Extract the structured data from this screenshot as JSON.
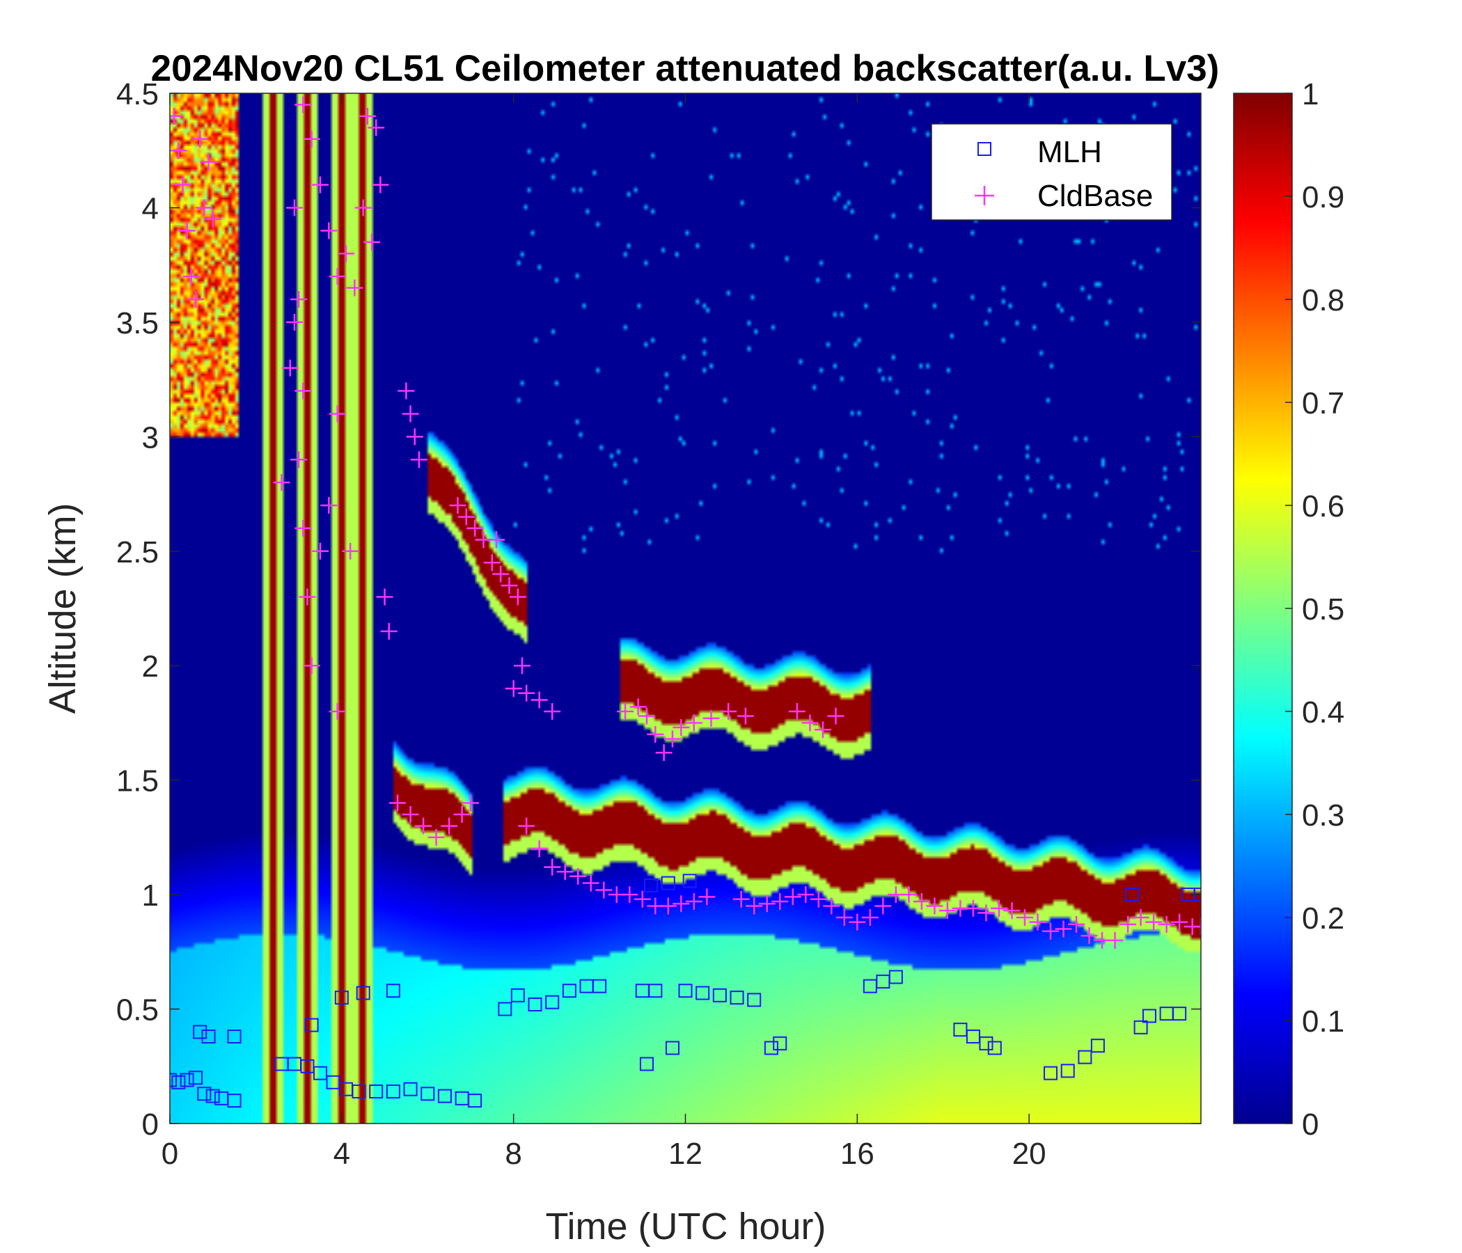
{
  "chart_data": {
    "type": "heatmap",
    "title": "2024Nov20 CL51 Ceilometer attenuated backscatter(a.u. Lv3)",
    "xlabel": "Time (UTC hour)",
    "ylabel": "Altitude (km)",
    "xlim": [
      0,
      24
    ],
    "ylim": [
      0,
      4.5
    ],
    "xticks": [
      0,
      4,
      8,
      12,
      16,
      20
    ],
    "xtick_labels": [
      "0",
      "4",
      "8",
      "12",
      "16",
      "20"
    ],
    "yticks": [
      0,
      0.5,
      1,
      1.5,
      2,
      2.5,
      3,
      3.5,
      4,
      4.5
    ],
    "ytick_labels": [
      "0",
      "0.5",
      "1",
      "1.5",
      "2",
      "2.5",
      "3",
      "3.5",
      "4",
      "4.5"
    ],
    "colorbar": {
      "colormap": "jet",
      "range": [
        0,
        1
      ],
      "ticks": [
        0,
        0.1,
        0.2,
        0.3,
        0.4,
        0.5,
        0.6,
        0.7,
        0.8,
        0.9,
        1
      ],
      "tick_labels": [
        "0",
        "0.1",
        "0.2",
        "0.3",
        "0.4",
        "0.5",
        "0.6",
        "0.7",
        "0.8",
        "0.9",
        "1"
      ]
    },
    "legend": {
      "position": "top-right",
      "entries": [
        {
          "name": "MLH",
          "marker": "square",
          "color": "#1a1aff"
        },
        {
          "name": "CldBase",
          "marker": "plus",
          "color": "#ff33ff"
        }
      ]
    },
    "field_description": {
      "background_level": 0.02,
      "boundary_layer": {
        "top_km": 0.75,
        "level_range": [
          0.25,
          0.6
        ]
      },
      "cloud_layers_km": [
        {
          "x_start": 5.2,
          "x_end": 7.0,
          "y_start": 1.45,
          "y_end": 1.2
        },
        {
          "x_start": 7.8,
          "x_end": 24,
          "y_start": 1.3,
          "y_end": 0.9
        },
        {
          "x_start": 10.5,
          "x_end": 16.3,
          "y_start": 1.85,
          "y_end": 1.75
        },
        {
          "x_start": 6.0,
          "x_end": 8.3,
          "y_start": 2.8,
          "y_end": 2.2
        }
      ],
      "vertical_streaks_hours": [
        2.4,
        3.2,
        4.0,
        4.5
      ]
    },
    "series": [
      {
        "name": "MLH",
        "points": [
          [
            0.0,
            0.19
          ],
          [
            0.2,
            0.18
          ],
          [
            0.4,
            0.19
          ],
          [
            0.6,
            0.2
          ],
          [
            0.8,
            0.13
          ],
          [
            1.0,
            0.12
          ],
          [
            1.2,
            0.11
          ],
          [
            1.5,
            0.1
          ],
          [
            0.7,
            0.4
          ],
          [
            0.9,
            0.38
          ],
          [
            1.5,
            0.38
          ],
          [
            2.6,
            0.26
          ],
          [
            2.9,
            0.26
          ],
          [
            3.2,
            0.25
          ],
          [
            3.5,
            0.22
          ],
          [
            3.8,
            0.18
          ],
          [
            4.1,
            0.15
          ],
          [
            4.4,
            0.14
          ],
          [
            4.8,
            0.14
          ],
          [
            5.2,
            0.14
          ],
          [
            5.6,
            0.15
          ],
          [
            6.0,
            0.13
          ],
          [
            6.4,
            0.12
          ],
          [
            6.8,
            0.11
          ],
          [
            7.1,
            0.1
          ],
          [
            3.3,
            0.43
          ],
          [
            4.0,
            0.55
          ],
          [
            4.5,
            0.57
          ],
          [
            5.2,
            0.58
          ],
          [
            7.8,
            0.5
          ],
          [
            8.1,
            0.56
          ],
          [
            8.5,
            0.52
          ],
          [
            8.9,
            0.53
          ],
          [
            9.3,
            0.58
          ],
          [
            9.7,
            0.6
          ],
          [
            10.0,
            0.6
          ],
          [
            11.0,
            0.58
          ],
          [
            11.3,
            0.58
          ],
          [
            12.0,
            0.58
          ],
          [
            12.4,
            0.57
          ],
          [
            12.8,
            0.56
          ],
          [
            13.2,
            0.55
          ],
          [
            13.6,
            0.54
          ],
          [
            11.1,
            0.26
          ],
          [
            11.7,
            0.33
          ],
          [
            14.0,
            0.33
          ],
          [
            14.2,
            0.35
          ],
          [
            11.2,
            1.04
          ],
          [
            11.6,
            1.05
          ],
          [
            12.1,
            1.06
          ],
          [
            16.3,
            0.6
          ],
          [
            16.6,
            0.62
          ],
          [
            16.9,
            0.64
          ],
          [
            18.4,
            0.41
          ],
          [
            18.7,
            0.38
          ],
          [
            19.0,
            0.35
          ],
          [
            19.2,
            0.33
          ],
          [
            20.5,
            0.22
          ],
          [
            20.9,
            0.23
          ],
          [
            21.3,
            0.29
          ],
          [
            21.6,
            0.34
          ],
          [
            22.6,
            0.42
          ],
          [
            22.8,
            0.47
          ],
          [
            23.2,
            0.48
          ],
          [
            23.5,
            0.48
          ],
          [
            22.4,
            1.0
          ],
          [
            23.7,
            1.0
          ],
          [
            24.0,
            1.0
          ]
        ]
      },
      {
        "name": "CldBase",
        "points": [
          [
            0.1,
            4.4
          ],
          [
            0.2,
            4.25
          ],
          [
            0.3,
            4.1
          ],
          [
            0.4,
            3.9
          ],
          [
            0.5,
            3.7
          ],
          [
            0.6,
            3.6
          ],
          [
            0.7,
            4.3
          ],
          [
            0.8,
            4.0
          ],
          [
            0.9,
            4.2
          ],
          [
            1.0,
            3.95
          ],
          [
            3.1,
            4.45
          ],
          [
            3.3,
            4.3
          ],
          [
            3.5,
            4.1
          ],
          [
            3.7,
            3.9
          ],
          [
            3.9,
            3.7
          ],
          [
            4.1,
            3.8
          ],
          [
            4.3,
            3.65
          ],
          [
            4.5,
            4.0
          ],
          [
            4.7,
            3.85
          ],
          [
            4.9,
            4.1
          ],
          [
            4.6,
            4.4
          ],
          [
            4.8,
            4.35
          ],
          [
            2.9,
            4.0
          ],
          [
            3.0,
            3.6
          ],
          [
            3.0,
            2.9
          ],
          [
            3.1,
            2.6
          ],
          [
            3.2,
            2.3
          ],
          [
            3.3,
            2.0
          ],
          [
            3.5,
            2.5
          ],
          [
            3.7,
            2.7
          ],
          [
            3.9,
            3.1
          ],
          [
            4.2,
            2.5
          ],
          [
            5.0,
            2.3
          ],
          [
            5.1,
            2.15
          ],
          [
            2.6,
            2.8
          ],
          [
            2.8,
            3.3
          ],
          [
            2.9,
            3.5
          ],
          [
            3.1,
            3.2
          ],
          [
            3.9,
            1.8
          ],
          [
            5.5,
            3.2
          ],
          [
            5.6,
            3.1
          ],
          [
            5.7,
            3.0
          ],
          [
            5.8,
            2.9
          ],
          [
            6.7,
            2.7
          ],
          [
            6.9,
            2.65
          ],
          [
            7.1,
            2.6
          ],
          [
            7.3,
            2.55
          ],
          [
            7.5,
            2.45
          ],
          [
            7.7,
            2.4
          ],
          [
            7.9,
            2.35
          ],
          [
            8.1,
            2.3
          ],
          [
            7.6,
            2.55
          ],
          [
            8.2,
            2.0
          ],
          [
            8.0,
            1.9
          ],
          [
            8.3,
            1.88
          ],
          [
            8.6,
            1.85
          ],
          [
            8.9,
            1.8
          ],
          [
            5.3,
            1.4
          ],
          [
            5.6,
            1.35
          ],
          [
            5.9,
            1.3
          ],
          [
            6.2,
            1.25
          ],
          [
            6.5,
            1.3
          ],
          [
            6.8,
            1.35
          ],
          [
            7.0,
            1.4
          ],
          [
            8.3,
            1.3
          ],
          [
            8.6,
            1.2
          ],
          [
            8.9,
            1.12
          ],
          [
            9.2,
            1.1
          ],
          [
            9.5,
            1.08
          ],
          [
            9.8,
            1.05
          ],
          [
            10.1,
            1.02
          ],
          [
            10.4,
            1.0
          ],
          [
            10.7,
            1.0
          ],
          [
            11.0,
            0.98
          ],
          [
            11.3,
            0.95
          ],
          [
            11.6,
            0.95
          ],
          [
            11.9,
            0.96
          ],
          [
            12.2,
            0.97
          ],
          [
            12.5,
            0.99
          ],
          [
            10.6,
            1.8
          ],
          [
            10.9,
            1.82
          ],
          [
            11.1,
            1.78
          ],
          [
            11.3,
            1.7
          ],
          [
            11.5,
            1.62
          ],
          [
            11.7,
            1.68
          ],
          [
            11.9,
            1.73
          ],
          [
            12.2,
            1.75
          ],
          [
            12.6,
            1.77
          ],
          [
            13.0,
            1.8
          ],
          [
            13.4,
            1.78
          ],
          [
            14.6,
            1.8
          ],
          [
            14.9,
            1.75
          ],
          [
            15.2,
            1.72
          ],
          [
            15.5,
            1.78
          ],
          [
            13.3,
            0.98
          ],
          [
            13.6,
            0.95
          ],
          [
            13.9,
            0.96
          ],
          [
            14.2,
            0.97
          ],
          [
            14.5,
            0.99
          ],
          [
            14.8,
            1.0
          ],
          [
            15.1,
            0.98
          ],
          [
            15.4,
            0.95
          ],
          [
            15.7,
            0.9
          ],
          [
            16.0,
            0.88
          ],
          [
            16.3,
            0.9
          ],
          [
            16.6,
            0.95
          ],
          [
            16.9,
            1.0
          ],
          [
            17.2,
            1.0
          ],
          [
            17.5,
            0.97
          ],
          [
            17.8,
            0.95
          ],
          [
            18.1,
            0.93
          ],
          [
            18.4,
            0.94
          ],
          [
            18.7,
            0.94
          ],
          [
            19.0,
            0.92
          ],
          [
            19.3,
            0.94
          ],
          [
            19.6,
            0.93
          ],
          [
            19.9,
            0.9
          ],
          [
            20.2,
            0.88
          ],
          [
            20.5,
            0.84
          ],
          [
            20.8,
            0.85
          ],
          [
            21.1,
            0.87
          ],
          [
            21.4,
            0.82
          ],
          [
            21.7,
            0.8
          ],
          [
            22.0,
            0.8
          ],
          [
            22.3,
            0.87
          ],
          [
            22.6,
            0.9
          ],
          [
            22.9,
            0.88
          ],
          [
            23.2,
            0.87
          ],
          [
            23.5,
            0.88
          ],
          [
            23.8,
            0.86
          ],
          [
            24.0,
            0.86
          ]
        ]
      }
    ]
  }
}
